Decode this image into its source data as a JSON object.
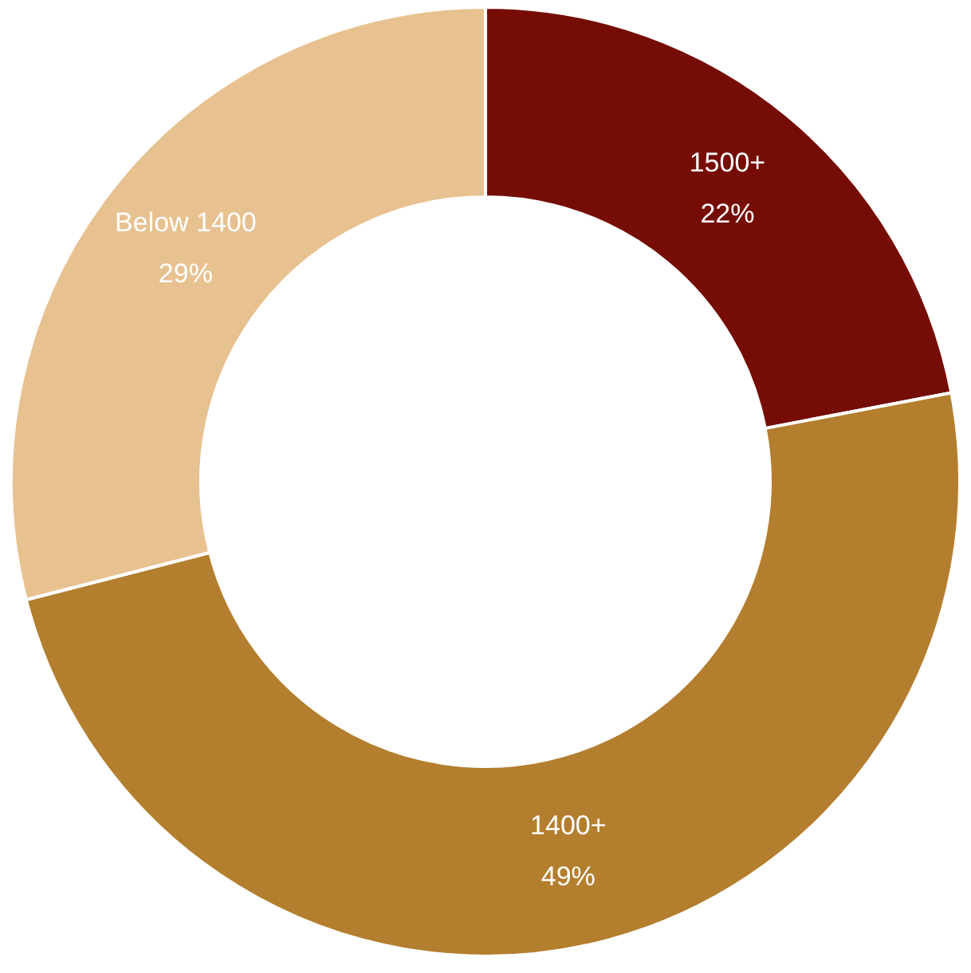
{
  "chart_data": {
    "type": "donut",
    "categories": [
      "1500+",
      "1400+",
      "Below 1400"
    ],
    "values": [
      22,
      49,
      29
    ],
    "colors": [
      "#750d04",
      "#b37e2e",
      "#e8c190"
    ],
    "value_labels": [
      "22%",
      "49%",
      "29%"
    ],
    "legend": false
  }
}
